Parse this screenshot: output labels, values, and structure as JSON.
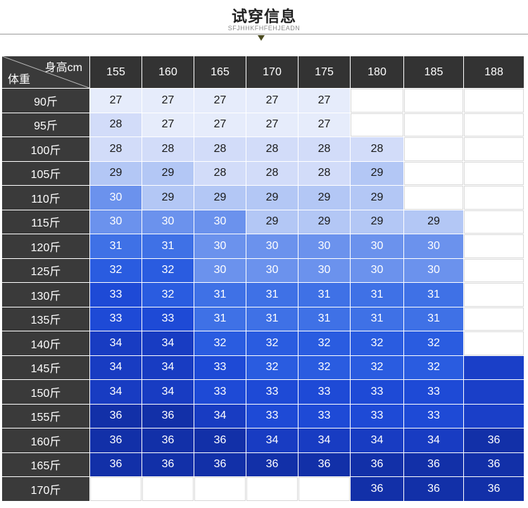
{
  "header": {
    "title": "试穿信息",
    "subtitle": "SFJHHKFHFEHJEADN"
  },
  "table": {
    "corner_height_label": "身高cm",
    "corner_weight_label": "体重",
    "heights": [
      "155",
      "160",
      "165",
      "170",
      "175",
      "180",
      "185",
      "188"
    ],
    "weights": [
      "90斤",
      "95斤",
      "100斤",
      "105斤",
      "110斤",
      "115斤",
      "120斤",
      "125斤",
      "130斤",
      "135斤",
      "140斤",
      "145斤",
      "150斤",
      "155斤",
      "160斤",
      "165斤",
      "170斤"
    ],
    "sizes": [
      [
        "27",
        "27",
        "27",
        "27",
        "27",
        "",
        "",
        ""
      ],
      [
        "28",
        "27",
        "27",
        "27",
        "27",
        "",
        "",
        ""
      ],
      [
        "28",
        "28",
        "28",
        "28",
        "28",
        "28",
        "",
        ""
      ],
      [
        "29",
        "29",
        "28",
        "28",
        "28",
        "29",
        "",
        ""
      ],
      [
        "30",
        "29",
        "29",
        "29",
        "29",
        "29",
        "",
        ""
      ],
      [
        "30",
        "30",
        "30",
        "29",
        "29",
        "29",
        "29",
        ""
      ],
      [
        "31",
        "31",
        "30",
        "30",
        "30",
        "30",
        "30",
        ""
      ],
      [
        "32",
        "32",
        "30",
        "30",
        "30",
        "30",
        "30",
        ""
      ],
      [
        "33",
        "32",
        "31",
        "31",
        "31",
        "31",
        "31",
        ""
      ],
      [
        "33",
        "33",
        "31",
        "31",
        "31",
        "31",
        "31",
        ""
      ],
      [
        "34",
        "34",
        "32",
        "32",
        "32",
        "32",
        "32",
        ""
      ],
      [
        "34",
        "34",
        "33",
        "32",
        "32",
        "32",
        "32",
        "-"
      ],
      [
        "34",
        "34",
        "33",
        "33",
        "33",
        "33",
        "33",
        "-"
      ],
      [
        "36",
        "36",
        "34",
        "33",
        "33",
        "33",
        "33",
        "-"
      ],
      [
        "36",
        "36",
        "36",
        "34",
        "34",
        "34",
        "34",
        "36"
      ],
      [
        "36",
        "36",
        "36",
        "36",
        "36",
        "36",
        "36",
        "36"
      ],
      [
        "",
        "",
        "",
        "",
        "",
        "36",
        "36",
        "36"
      ]
    ],
    "colors": {
      "header_bg": "#333333",
      "size_27": "#e6ecfb",
      "size_28": "#d2dcf9",
      "size_29": "#b3c7f5",
      "size_30": "#6b92ed",
      "size_31": "#3f71e6",
      "size_32": "#2a5ce0",
      "size_33": "#1e4ad6",
      "size_34": "#183cc2",
      "size_36": "#1230a8",
      "filled_no_value": "#1a3fc8"
    }
  }
}
